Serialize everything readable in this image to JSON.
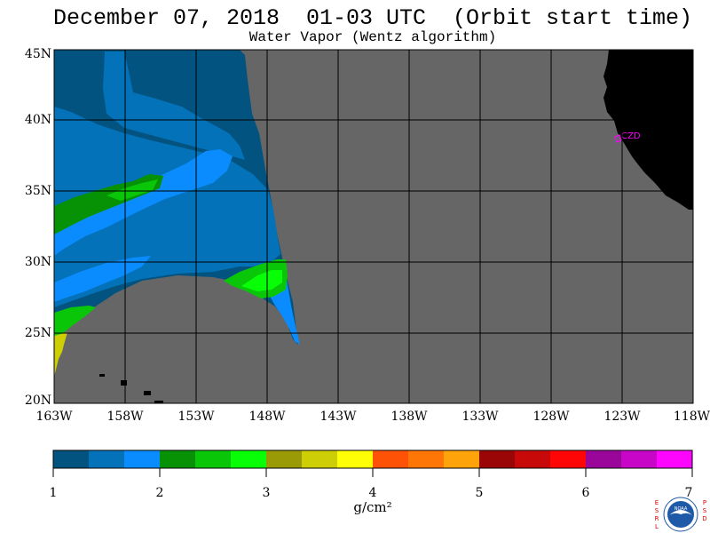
{
  "header": {
    "title": "December 07, 2018  01-03 UTC  (Orbit start time)",
    "subtitle": "Water Vapor (Wentz algorithm)"
  },
  "map": {
    "lat_labels": [
      "45N",
      "40N",
      "35N",
      "30N",
      "25N",
      "20N"
    ],
    "lon_labels": [
      "163W",
      "158W",
      "153W",
      "148W",
      "143W",
      "138W",
      "133W",
      "128W",
      "123W",
      "118W"
    ],
    "station_label": "CZD",
    "colors": {
      "no_data": "#666666",
      "land": "#000000",
      "grid": "#000000",
      "station": "#ff00ff"
    }
  },
  "colorbar": {
    "tick_labels": [
      "1",
      "2",
      "3",
      "4",
      "5",
      "6",
      "7"
    ],
    "unit": "g/cm²",
    "colors": [
      "#035380",
      "#0372b8",
      "#0a8cff",
      "#079205",
      "#09c708",
      "#07fe06",
      "#9a9a07",
      "#cece06",
      "#fefe06",
      "#fe5306",
      "#fe7606",
      "#fea40a",
      "#9a0606",
      "#c70909",
      "#fe0606",
      "#9a069a",
      "#c706c7",
      "#fe06fe"
    ]
  },
  "logo": {
    "left_letters": "ESRL",
    "right_letters": "PSD",
    "center_text": "NOAA"
  }
}
